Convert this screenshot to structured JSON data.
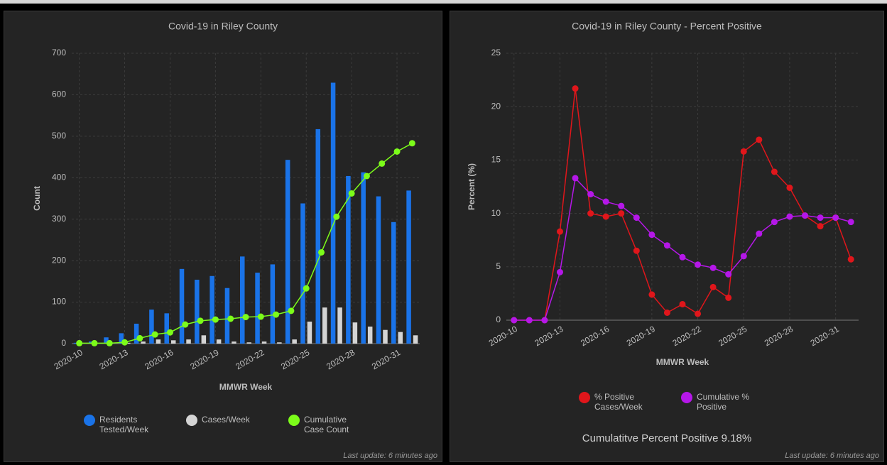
{
  "chart_data": [
    {
      "type": "bar",
      "title": "Covid-19 in Riley County",
      "x_label": "MMWR Week",
      "y_label": "Count",
      "categories": [
        "2020-10",
        null,
        null,
        "2020-13",
        null,
        null,
        "2020-16",
        null,
        null,
        "2020-19",
        null,
        null,
        "2020-22",
        null,
        null,
        "2020-25",
        null,
        null,
        "2020-28",
        null,
        null,
        "2020-31",
        null
      ],
      "series": [
        {
          "name": "Residents Tested/Week",
          "color": "#1a73e8",
          "type": "bar",
          "values": [
            2,
            5,
            15,
            25,
            48,
            82,
            73,
            180,
            154,
            163,
            134,
            210,
            171,
            191,
            443,
            338,
            517,
            629,
            404,
            413,
            355,
            293,
            369
          ]
        },
        {
          "name": "Cases/Week",
          "color": "#d4d4d4",
          "type": "bar",
          "values": [
            0,
            0,
            0,
            2,
            5,
            10,
            8,
            10,
            20,
            10,
            5,
            3,
            5,
            3,
            10,
            53,
            87,
            87,
            51,
            41,
            33,
            28,
            20
          ]
        },
        {
          "name": "Cumulative Case Count",
          "color": "#7cfc1a",
          "type": "line",
          "values": [
            1,
            1,
            1,
            3,
            13,
            22,
            27,
            46,
            55,
            58,
            60,
            64,
            65,
            70,
            79,
            133,
            220,
            306,
            362,
            404,
            434,
            463,
            483
          ]
        }
      ],
      "ylim": [
        0,
        700
      ],
      "yticks": [
        0,
        100,
        200,
        300,
        400,
        500,
        600,
        700
      ],
      "grid": true,
      "footer": "Last update: 6 minutes ago"
    },
    {
      "type": "line",
      "title": "Covid-19 in Riley County - Percent Positive",
      "x_label": "MMWR Week",
      "y_label": "Percent (%)",
      "categories": [
        "2020-10",
        null,
        null,
        "2020-13",
        null,
        null,
        "2020-16",
        null,
        null,
        "2020-19",
        null,
        null,
        "2020-22",
        null,
        null,
        "2020-25",
        null,
        null,
        "2020-28",
        null,
        null,
        "2020-31",
        null
      ],
      "series": [
        {
          "name": "% Positive Cases/Week",
          "color": "#e0161b",
          "values": [
            0,
            0,
            0,
            8.3,
            21.7,
            10.0,
            9.7,
            10.0,
            6.5,
            2.4,
            0.7,
            1.5,
            0.6,
            3.1,
            2.1,
            15.8,
            16.9,
            13.9,
            12.4,
            9.8,
            8.8,
            9.6,
            5.7
          ]
        },
        {
          "name": "Cumulative % Positive",
          "color": "#b517e8",
          "values": [
            0,
            0,
            0,
            4.5,
            13.3,
            11.8,
            11.1,
            10.7,
            9.6,
            8.0,
            7.0,
            5.9,
            5.2,
            4.9,
            4.3,
            6.0,
            8.1,
            9.2,
            9.7,
            9.8,
            9.6,
            9.6,
            9.2
          ]
        }
      ],
      "ylim": [
        0,
        25
      ],
      "yticks": [
        0,
        5,
        10,
        15,
        20,
        25
      ],
      "grid": true,
      "annotation": "Cumulatitve Percent Positive 9.18%",
      "footer": "Last update: 6 minutes ago"
    }
  ]
}
